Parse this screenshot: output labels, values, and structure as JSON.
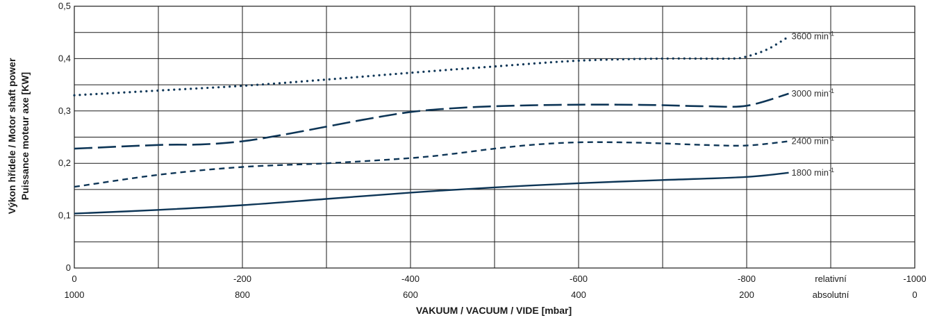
{
  "chart_data": {
    "type": "line",
    "ylabel_line1": "Výkon hřídele / Motor shaft power",
    "ylabel_line2": "Puissance moteur axe  [KW]",
    "xlabel": "VAKUUM / VACUUM / VIDE  [mbar]",
    "xlim": [
      0,
      -1000
    ],
    "ylim": [
      0,
      0.5
    ],
    "x_ticks": [
      {
        "rel": "0",
        "abs": "1000",
        "x": 0
      },
      {
        "rel": "-200",
        "abs": "800",
        "x": -200
      },
      {
        "rel": "-400",
        "abs": "600",
        "x": -400
      },
      {
        "rel": "-600",
        "abs": "400",
        "x": -600
      },
      {
        "rel": "-800",
        "abs": "200",
        "x": -800
      },
      {
        "rel": "relativní",
        "abs": "absolutní",
        "x": -900
      },
      {
        "rel": "-1000",
        "abs": "0",
        "x": -1000
      }
    ],
    "y_ticks": [
      {
        "label": "0",
        "y": 0
      },
      {
        "label": "0,1",
        "y": 0.1
      },
      {
        "label": "0,2",
        "y": 0.2
      },
      {
        "label": "0,3",
        "y": 0.3
      },
      {
        "label": "0,4",
        "y": 0.4
      },
      {
        "label": "0,5",
        "y": 0.5
      }
    ],
    "grid_x": [
      -100,
      -200,
      -300,
      -400,
      -500,
      -600,
      -700,
      -800,
      -900
    ],
    "grid_y": [
      0.05,
      0.1,
      0.15,
      0.2,
      0.25,
      0.3,
      0.35,
      0.4,
      0.45
    ],
    "series": [
      {
        "name": "1800",
        "unit": "min",
        "exp": "-1",
        "style": "solid",
        "x": [
          0,
          -100,
          -200,
          -300,
          -400,
          -500,
          -600,
          -700,
          -800,
          -850
        ],
        "y": [
          0.104,
          0.111,
          0.12,
          0.132,
          0.144,
          0.154,
          0.162,
          0.168,
          0.174,
          0.182
        ]
      },
      {
        "name": "2400",
        "unit": "min",
        "exp": "-1",
        "style": "dash-short",
        "x": [
          0,
          -100,
          -200,
          -300,
          -400,
          -450,
          -500,
          -550,
          -600,
          -650,
          -700,
          -750,
          -800,
          -850
        ],
        "y": [
          0.155,
          0.178,
          0.193,
          0.2,
          0.21,
          0.218,
          0.228,
          0.236,
          0.24,
          0.24,
          0.238,
          0.235,
          0.234,
          0.242
        ]
      },
      {
        "name": "3000",
        "unit": "min",
        "exp": "-1",
        "style": "dash-long",
        "x": [
          0,
          -100,
          -150,
          -200,
          -250,
          -300,
          -350,
          -400,
          -450,
          -500,
          -550,
          -600,
          -650,
          -700,
          -750,
          -800,
          -850
        ],
        "y": [
          0.228,
          0.235,
          0.236,
          0.242,
          0.255,
          0.27,
          0.285,
          0.298,
          0.305,
          0.309,
          0.311,
          0.312,
          0.312,
          0.311,
          0.309,
          0.31,
          0.333
        ]
      },
      {
        "name": "3600",
        "unit": "min",
        "exp": "-1",
        "style": "dotted",
        "x": [
          0,
          -100,
          -200,
          -300,
          -400,
          -500,
          -600,
          -700,
          -780,
          -800,
          -825,
          -850
        ],
        "y": [
          0.33,
          0.339,
          0.348,
          0.36,
          0.373,
          0.385,
          0.396,
          0.4,
          0.4,
          0.404,
          0.418,
          0.442
        ]
      }
    ]
  }
}
